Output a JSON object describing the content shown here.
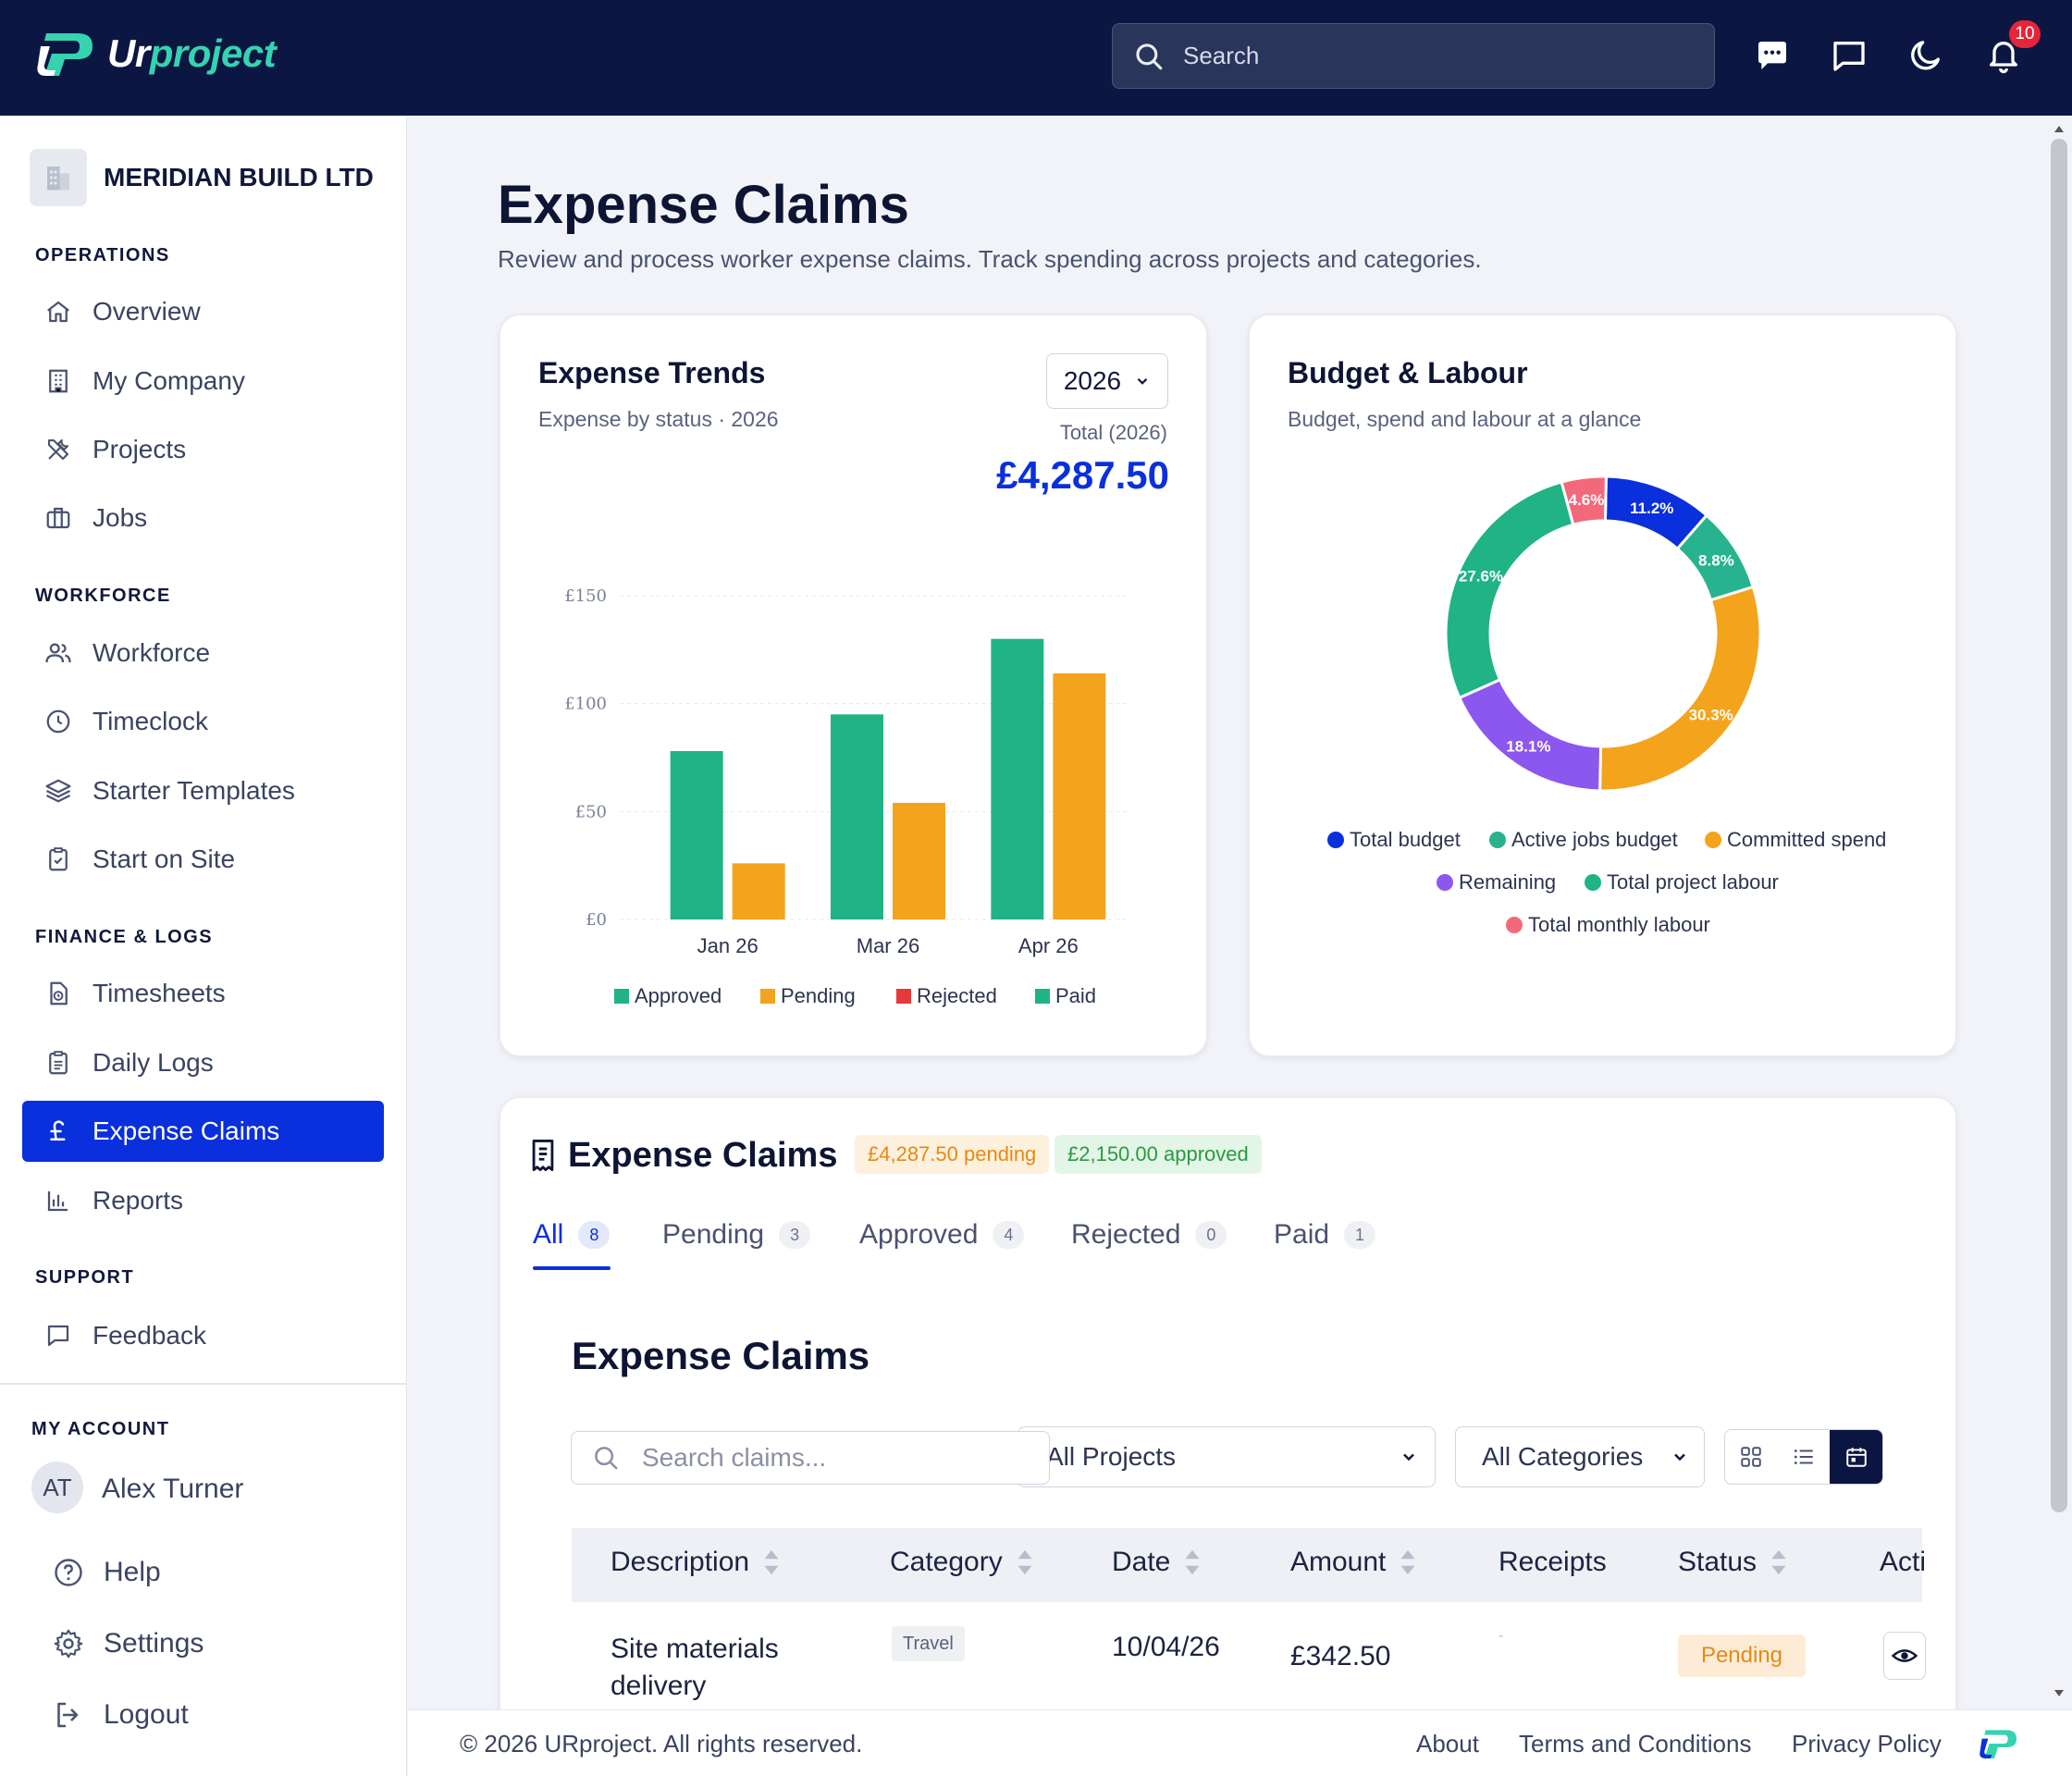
{
  "app": {
    "logo_prefix": "Ur",
    "logo_suffix": "project"
  },
  "header": {
    "search_placeholder": "Search",
    "notification_count": "10"
  },
  "sidebar": {
    "org_name": "MERIDIAN BUILD LTD",
    "sections": {
      "operations": "OPERATIONS",
      "workforce": "WORKFORCE",
      "finance": "FINANCE & LOGS",
      "support": "SUPPORT"
    },
    "items": {
      "overview": "Overview",
      "my_company": "My Company",
      "projects": "Projects",
      "jobs": "Jobs",
      "workforce": "Workforce",
      "timeclock": "Timeclock",
      "starter_templates": "Starter Templates",
      "start_on_site": "Start on Site",
      "timesheets": "Timesheets",
      "daily_logs": "Daily Logs",
      "expense_claims": "Expense Claims",
      "reports": "Reports",
      "feedback": "Feedback"
    },
    "account": {
      "label": "MY ACCOUNT",
      "initials": "AT",
      "name": "Alex Turner",
      "help": "Help",
      "settings": "Settings",
      "logout": "Logout"
    }
  },
  "page": {
    "title": "Expense Claims",
    "subtitle": "Review and process worker expense claims. Track spending across projects and categories."
  },
  "trends": {
    "title": "Expense Trends",
    "subtitle": "Expense by status · 2026",
    "year": "2026",
    "total_label": "Total (2026)",
    "total_value": "£4,287.50"
  },
  "budget": {
    "title": "Budget & Labour",
    "subtitle": "Budget, spend and labour at a glance"
  },
  "chart_data": [
    {
      "type": "bar",
      "title": "Expense Trends",
      "categories": [
        "Jan 26",
        "Mar 26",
        "Apr 26"
      ],
      "series": [
        {
          "name": "Approved",
          "color": "#1fb386",
          "values": [
            78,
            95,
            130
          ]
        },
        {
          "name": "Pending",
          "color": "#f4a31c",
          "values": [
            26,
            54,
            114
          ]
        },
        {
          "name": "Rejected",
          "color": "#e5393b",
          "values": [
            0,
            0,
            0
          ]
        },
        {
          "name": "Paid",
          "color": "#1fb386",
          "values": [
            0,
            0,
            0
          ]
        }
      ],
      "yticks": [
        "£0",
        "£50",
        "£100",
        "£150"
      ],
      "ylim": [
        0,
        150
      ],
      "grid": true,
      "legend": "bottom"
    },
    {
      "type": "pie",
      "title": "Budget & Labour",
      "donut": true,
      "slices": [
        {
          "name": "Total budget",
          "value": 11.2,
          "label": "11.2%",
          "color": "#0a2fdc"
        },
        {
          "name": "Active jobs budget",
          "value": 8.8,
          "label": "8.8%",
          "color": "#27b38f"
        },
        {
          "name": "Committed spend",
          "value": 30.3,
          "label": "30.3%",
          "color": "#f4a31c"
        },
        {
          "name": "Remaining",
          "value": 18.1,
          "label": "18.1%",
          "color": "#8b57ee"
        },
        {
          "name": "Total project labour",
          "value": 27.6,
          "label": "27.6%",
          "color": "#1fb386"
        },
        {
          "name": "Total monthly labour",
          "value": 4.6,
          "label": "4.6%",
          "color": "#f4697a"
        }
      ],
      "legend": "bottom"
    }
  ],
  "claims": {
    "title": "Expense Claims",
    "pending_pill": "£4,287.50 pending",
    "approved_pill": "£2,150.00 approved",
    "tabs": [
      {
        "label": "All",
        "count": "8"
      },
      {
        "label": "Pending",
        "count": "3"
      },
      {
        "label": "Approved",
        "count": "4"
      },
      {
        "label": "Rejected",
        "count": "0"
      },
      {
        "label": "Paid",
        "count": "1"
      }
    ],
    "inner_title": "Expense Claims",
    "search_placeholder": "Search claims...",
    "project_filter": "All Projects",
    "category_filter": "All Categories",
    "columns": [
      "Description",
      "Category",
      "Date",
      "Amount",
      "Receipts",
      "Status",
      "Acti"
    ],
    "rows": [
      {
        "description_line1": "Site materials",
        "description_line2": "delivery",
        "category": "Travel",
        "date": "10/04/26",
        "amount": "£342.50",
        "receipts": "-",
        "status": "Pending"
      }
    ]
  },
  "footer": {
    "copyright": "© 2026 URproject. All rights reserved.",
    "about": "About",
    "terms": "Terms and Conditions",
    "privacy": "Privacy Policy"
  }
}
